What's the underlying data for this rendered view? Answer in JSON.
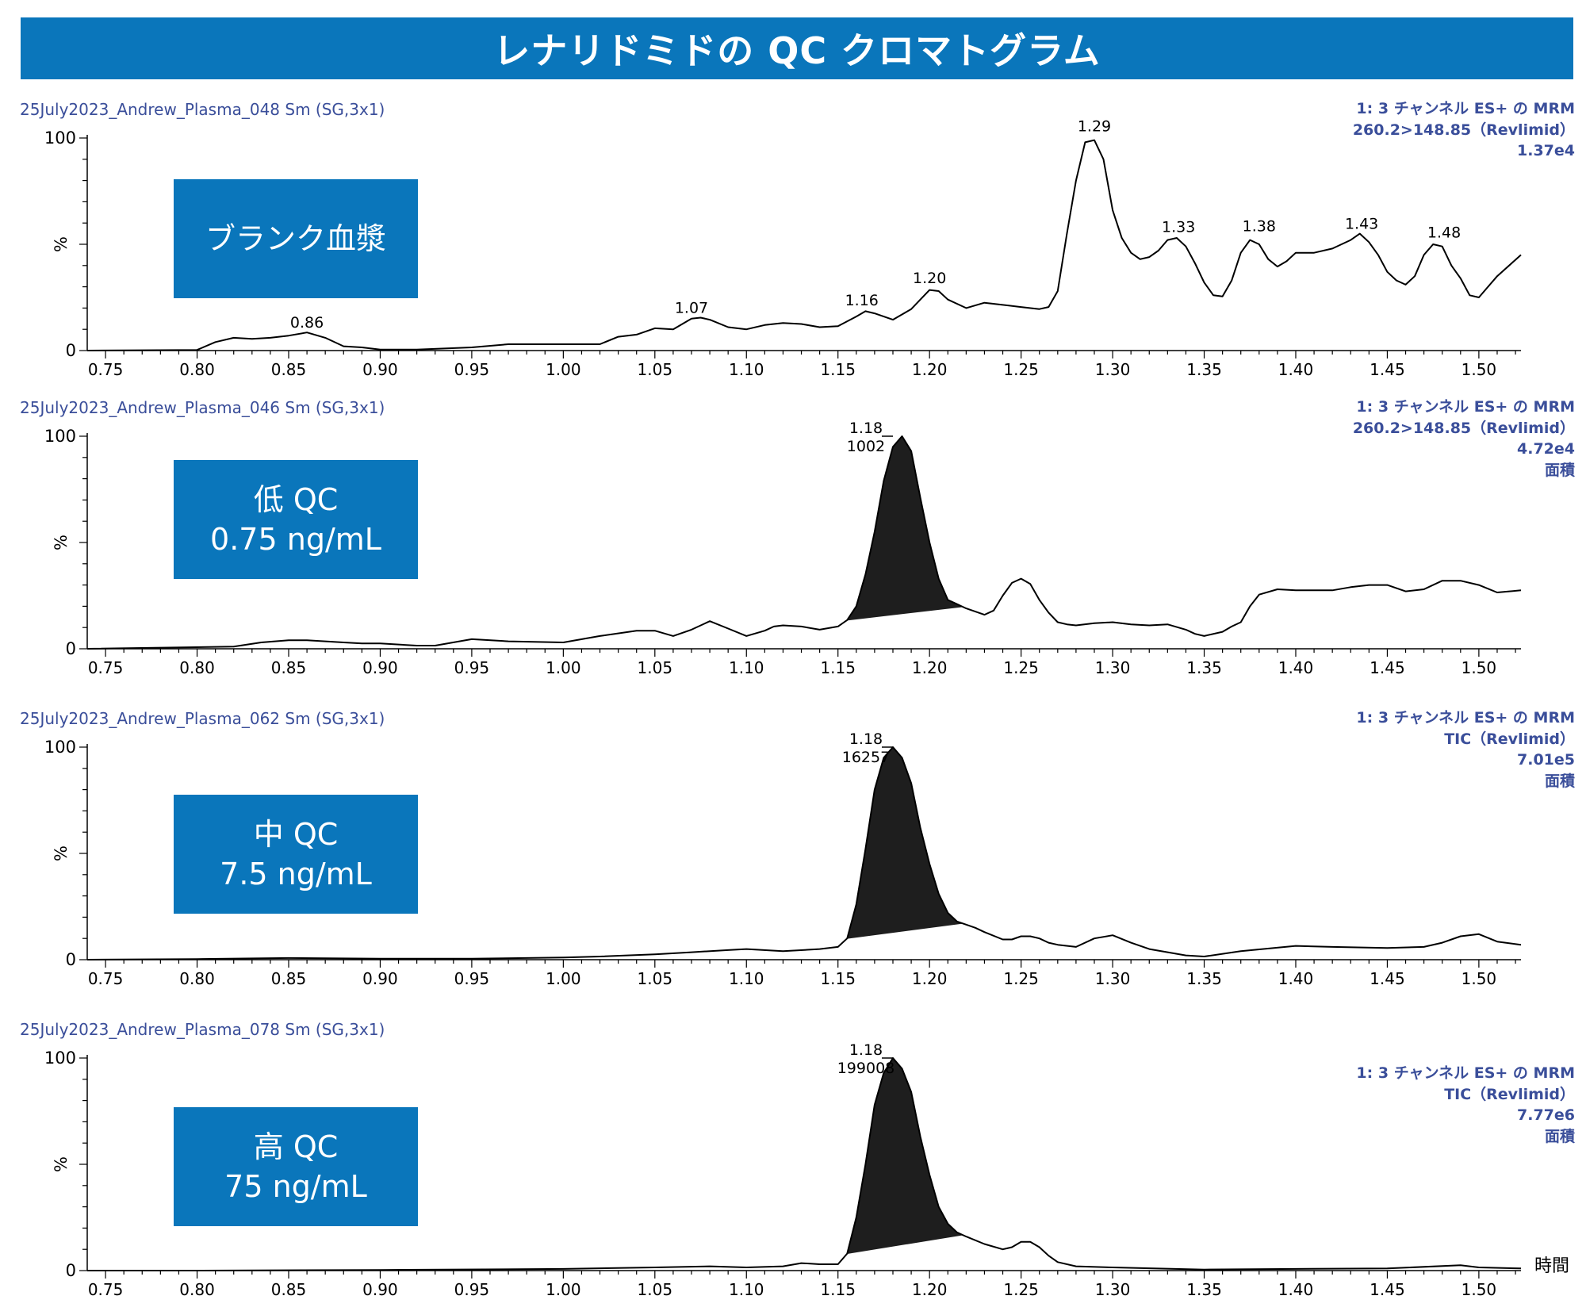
{
  "title": "レナリドミドの QC クロマトグラム",
  "x_axis_end_label": "時間",
  "colors": {
    "accent": "#0a76bb",
    "info_text": "#3a4e9a",
    "trace": "#000000",
    "peak_fill": "#1e1e1e"
  },
  "chart_data": [
    {
      "type": "line",
      "sample_name": "25July2023_Andrew_Plasma_048 Sm (SG,3x1)",
      "info": [
        "1: 3 チャンネル ES+ の MRM",
        "260.2>148.85（Revlimid）",
        "1.37e4"
      ],
      "label": [
        "ブランク血漿"
      ],
      "ylabel": "%",
      "yticks": [
        "0",
        "100"
      ],
      "xlim": [
        0.74,
        1.523
      ],
      "ylim": [
        0,
        100
      ],
      "xticks": [
        "0.75",
        "0.80",
        "0.85",
        "0.90",
        "0.95",
        "1.00",
        "1.05",
        "1.10",
        "1.15",
        "1.20",
        "1.25",
        "1.30",
        "1.35",
        "1.40",
        "1.45",
        "1.50"
      ],
      "peak_labels": [
        {
          "x": 0.86,
          "y": 8.5,
          "text": "0.86"
        },
        {
          "x": 1.07,
          "y": 15.5,
          "text": "1.07"
        },
        {
          "x": 1.163,
          "y": 19.0,
          "text": "1.16"
        },
        {
          "x": 1.2,
          "y": 29.5,
          "text": "1.20"
        },
        {
          "x": 1.29,
          "y": 101,
          "text": "1.29"
        },
        {
          "x": 1.336,
          "y": 53.5,
          "text": "1.33"
        },
        {
          "x": 1.38,
          "y": 54,
          "text": "1.38"
        },
        {
          "x": 1.436,
          "y": 55,
          "text": "1.43"
        },
        {
          "x": 1.481,
          "y": 51,
          "text": "1.48"
        }
      ],
      "series": [
        {
          "x": [
            0.74,
            0.8,
            0.81,
            0.82,
            0.83,
            0.84,
            0.85,
            0.86,
            0.87,
            0.88,
            0.89,
            0.9,
            0.92,
            0.95,
            0.97,
            0.99,
            1.0,
            1.01,
            1.02,
            1.03,
            1.04,
            1.05,
            1.06,
            1.07,
            1.075,
            1.08,
            1.09,
            1.1,
            1.11,
            1.12,
            1.13,
            1.14,
            1.15,
            1.16,
            1.165,
            1.17,
            1.18,
            1.19,
            1.2,
            1.205,
            1.21,
            1.22,
            1.23,
            1.24,
            1.25,
            1.26,
            1.265,
            1.27,
            1.275,
            1.28,
            1.285,
            1.29,
            1.295,
            1.3,
            1.305,
            1.31,
            1.315,
            1.32,
            1.325,
            1.33,
            1.335,
            1.34,
            1.345,
            1.35,
            1.355,
            1.36,
            1.365,
            1.37,
            1.375,
            1.38,
            1.385,
            1.39,
            1.395,
            1.4,
            1.41,
            1.42,
            1.43,
            1.435,
            1.44,
            1.445,
            1.45,
            1.455,
            1.46,
            1.465,
            1.47,
            1.475,
            1.48,
            1.485,
            1.49,
            1.495,
            1.5,
            1.505,
            1.51,
            1.523
          ],
          "y": [
            0,
            0.3,
            4,
            6,
            5.5,
            6,
            7,
            8.5,
            6,
            2,
            1.5,
            0.5,
            0.5,
            1.5,
            3,
            3,
            3,
            3,
            3,
            6.5,
            7.5,
            10.5,
            10,
            15,
            15.5,
            14.5,
            11,
            10,
            12,
            13,
            12.5,
            11,
            11.5,
            16,
            18.5,
            17.5,
            14.5,
            19.5,
            28.5,
            28,
            24,
            20,
            22.5,
            21.5,
            20.5,
            19.5,
            20.5,
            28,
            55,
            80,
            98,
            99,
            90,
            66,
            53,
            46,
            43,
            44,
            47,
            52,
            53,
            49,
            41,
            32,
            26,
            25.5,
            33,
            46,
            52,
            50,
            43,
            39.5,
            42,
            46,
            46,
            48,
            52,
            55,
            51,
            45,
            37,
            33,
            31,
            35,
            45,
            50,
            49,
            40,
            34,
            26,
            25,
            30,
            35,
            45
          ]
        }
      ],
      "shaded_peak": null
    },
    {
      "type": "line",
      "sample_name": "25July2023_Andrew_Plasma_046 Sm (SG,3x1)",
      "info": [
        "1: 3 チャンネル ES+ の MRM",
        "260.2>148.85（Revlimid）",
        "4.72e4",
        "面積"
      ],
      "label": [
        "低 QC",
        "0.75 ng/mL"
      ],
      "ylabel": "%",
      "yticks": [
        "0",
        "100"
      ],
      "xlim": [
        0.74,
        1.523
      ],
      "ylim": [
        0,
        100
      ],
      "xticks": [
        "0.75",
        "0.80",
        "0.85",
        "0.90",
        "0.95",
        "1.00",
        "1.05",
        "1.10",
        "1.15",
        "1.20",
        "1.25",
        "1.30",
        "1.35",
        "1.40",
        "1.45",
        "1.50"
      ],
      "peak_labels": [
        {
          "x": 1.18,
          "y": 100,
          "text": "1.18",
          "area": "1002"
        }
      ],
      "series": [
        {
          "x": [
            0.74,
            0.82,
            0.835,
            0.85,
            0.86,
            0.88,
            0.89,
            0.9,
            0.92,
            0.93,
            0.95,
            0.97,
            1.0,
            1.02,
            1.04,
            1.05,
            1.06,
            1.07,
            1.08,
            1.09,
            1.1,
            1.11,
            1.115,
            1.12,
            1.13,
            1.14,
            1.15,
            1.155,
            1.16,
            1.165,
            1.17,
            1.175,
            1.18,
            1.185,
            1.19,
            1.195,
            1.2,
            1.205,
            1.21,
            1.215,
            1.22,
            1.23,
            1.235,
            1.24,
            1.245,
            1.25,
            1.255,
            1.26,
            1.265,
            1.27,
            1.275,
            1.28,
            1.29,
            1.3,
            1.31,
            1.32,
            1.33,
            1.34,
            1.345,
            1.35,
            1.36,
            1.365,
            1.37,
            1.375,
            1.38,
            1.39,
            1.4,
            1.42,
            1.43,
            1.44,
            1.45,
            1.46,
            1.47,
            1.48,
            1.49,
            1.5,
            1.51,
            1.523
          ],
          "y": [
            0,
            1,
            3,
            4,
            4,
            3,
            2.5,
            2.5,
            1.5,
            1.5,
            4.5,
            3.5,
            3,
            6,
            8.5,
            8.5,
            6,
            9,
            13,
            9.5,
            6,
            8.5,
            10.5,
            11,
            10.5,
            9,
            10.5,
            13.5,
            20,
            35,
            55,
            79,
            95,
            100,
            93,
            71,
            50,
            33,
            23,
            21,
            19,
            16,
            18,
            25,
            31,
            33,
            30.5,
            23,
            17,
            12.5,
            11.5,
            11,
            12,
            12.5,
            11.5,
            11,
            11.5,
            9,
            7,
            6,
            8,
            10.5,
            12.5,
            20,
            25.5,
            28,
            27.5,
            27.5,
            29,
            30,
            30,
            27,
            28,
            32,
            32,
            30,
            26.5,
            27.5
          ]
        }
      ],
      "shaded_peak": {
        "x_start": 1.155,
        "x_end": 1.218
      }
    },
    {
      "type": "line",
      "sample_name": "25July2023_Andrew_Plasma_062 Sm (SG,3x1)",
      "info": [
        "1: 3 チャンネル ES+ の MRM",
        "TIC（Revlimid）",
        "7.01e5",
        "面積"
      ],
      "label": [
        "中 QC",
        "7.5 ng/mL"
      ],
      "ylabel": "%",
      "yticks": [
        "0",
        "100"
      ],
      "xlim": [
        0.74,
        1.523
      ],
      "ylim": [
        0,
        100
      ],
      "xticks": [
        "0.75",
        "0.80",
        "0.85",
        "0.90",
        "0.95",
        "1.00",
        "1.05",
        "1.10",
        "1.15",
        "1.20",
        "1.25",
        "1.30",
        "1.35",
        "1.40",
        "1.45",
        "1.50"
      ],
      "peak_labels": [
        {
          "x": 1.18,
          "y": 100,
          "text": "1.18",
          "area": "16257"
        }
      ],
      "series": [
        {
          "x": [
            0.74,
            0.8,
            0.85,
            0.9,
            0.95,
            1.0,
            1.02,
            1.05,
            1.07,
            1.09,
            1.1,
            1.12,
            1.14,
            1.15,
            1.155,
            1.16,
            1.165,
            1.17,
            1.175,
            1.18,
            1.185,
            1.19,
            1.195,
            1.2,
            1.205,
            1.21,
            1.215,
            1.22,
            1.225,
            1.23,
            1.24,
            1.245,
            1.25,
            1.255,
            1.26,
            1.265,
            1.27,
            1.28,
            1.29,
            1.3,
            1.31,
            1.32,
            1.34,
            1.35,
            1.37,
            1.4,
            1.42,
            1.45,
            1.47,
            1.48,
            1.49,
            1.5,
            1.51,
            1.523
          ],
          "y": [
            0,
            0.3,
            0.8,
            0.5,
            0.5,
            1,
            1.5,
            2.5,
            3.5,
            4.5,
            5,
            4,
            5,
            6,
            10,
            26,
            52,
            80,
            95,
            100,
            95,
            83,
            62,
            45,
            31,
            22,
            18,
            16.5,
            15,
            13,
            9.5,
            9.5,
            11,
            11,
            10,
            8,
            7,
            6,
            10,
            11.5,
            8,
            5,
            2,
            1.5,
            4,
            6.5,
            6,
            5.5,
            6,
            8,
            11,
            12,
            8.5,
            7
          ]
        }
      ],
      "shaded_peak": {
        "x_start": 1.155,
        "x_end": 1.218
      }
    },
    {
      "type": "line",
      "sample_name": "25July2023_Andrew_Plasma_078 Sm (SG,3x1)",
      "info": [
        "1: 3 チャンネル ES+ の MRM",
        "TIC（Revlimid）",
        "7.77e6",
        "面積"
      ],
      "label": [
        "高 QC",
        "75 ng/mL"
      ],
      "ylabel": "%",
      "yticks": [
        "0",
        "100"
      ],
      "xlim": [
        0.74,
        1.523
      ],
      "ylim": [
        0,
        100
      ],
      "xticks": [
        "0.75",
        "0.80",
        "0.85",
        "0.90",
        "0.95",
        "1.00",
        "1.05",
        "1.10",
        "1.15",
        "1.20",
        "1.25",
        "1.30",
        "1.35",
        "1.40",
        "1.45",
        "1.50"
      ],
      "peak_labels": [
        {
          "x": 1.18,
          "y": 100,
          "text": "1.18",
          "area": "199008"
        }
      ],
      "series": [
        {
          "x": [
            0.74,
            0.8,
            0.9,
            1.0,
            1.05,
            1.08,
            1.1,
            1.12,
            1.13,
            1.14,
            1.15,
            1.155,
            1.16,
            1.165,
            1.17,
            1.175,
            1.18,
            1.185,
            1.19,
            1.195,
            1.2,
            1.205,
            1.21,
            1.215,
            1.22,
            1.23,
            1.24,
            1.245,
            1.25,
            1.255,
            1.26,
            1.265,
            1.27,
            1.28,
            1.3,
            1.35,
            1.4,
            1.45,
            1.49,
            1.5,
            1.523
          ],
          "y": [
            0,
            0,
            0.3,
            0.8,
            1.5,
            2,
            1.5,
            2,
            3.5,
            3,
            3,
            8,
            25,
            50,
            78,
            93,
            100,
            95,
            84,
            63,
            45,
            30,
            22,
            18,
            16,
            12.5,
            10,
            11,
            13.5,
            13.5,
            11,
            7,
            4,
            2,
            1.5,
            0.5,
            0.8,
            1,
            2.5,
            1.5,
            1
          ]
        }
      ],
      "shaded_peak": {
        "x_start": 1.155,
        "x_end": 1.218
      }
    }
  ]
}
